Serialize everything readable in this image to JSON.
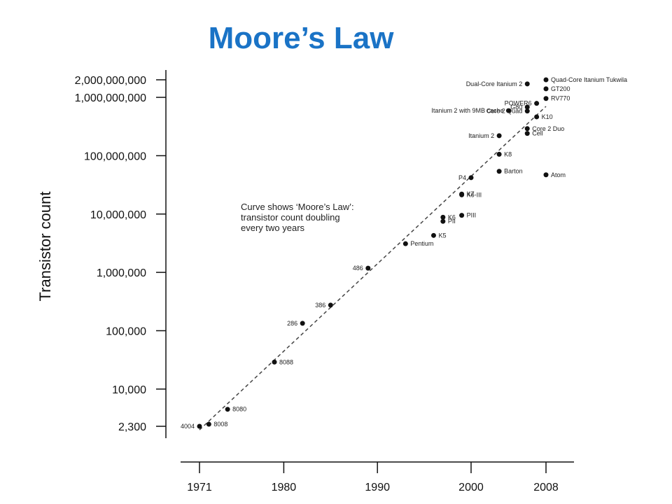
{
  "page": {
    "title": "Moore’s Law"
  },
  "chart_data": {
    "type": "scatter",
    "title": "",
    "xlabel": "",
    "ylabel": "Transistor count",
    "xscale": "linear",
    "yscale": "log",
    "xlim": [
      1971,
      2008
    ],
    "ylim": [
      2300,
      2000000000
    ],
    "x_ticks": [
      1971,
      1980,
      1990,
      2000,
      2008
    ],
    "y_ticks": [
      {
        "value": 2300,
        "label": "2,300"
      },
      {
        "value": 10000,
        "label": "10,000"
      },
      {
        "value": 100000,
        "label": "100,000"
      },
      {
        "value": 1000000,
        "label": "1,000,000"
      },
      {
        "value": 10000000,
        "label": "10,000,000"
      },
      {
        "value": 100000000,
        "label": "100,000,000"
      },
      {
        "value": 1000000000,
        "label": "1,000,000,000"
      },
      {
        "value": 2000000000,
        "label": "2,000,000,000"
      }
    ],
    "grid": false,
    "trend_line": {
      "style": "dashed",
      "x": [
        1971,
        2008
      ],
      "y": [
        2000,
        700000000
      ]
    },
    "annotation": [
      "Curve shows ‘Moore’s Law’:",
      "transistor count doubling",
      "every two years"
    ],
    "points": [
      {
        "name": "4004",
        "x": 1971,
        "y": 2300,
        "label_side": "left"
      },
      {
        "name": "8008",
        "x": 1972,
        "y": 2500,
        "label_side": "right"
      },
      {
        "name": "8080",
        "x": 1974,
        "y": 4500,
        "label_side": "right"
      },
      {
        "name": "8088",
        "x": 1979,
        "y": 29000,
        "label_side": "right"
      },
      {
        "name": "286",
        "x": 1982,
        "y": 134000,
        "label_side": "left"
      },
      {
        "name": "386",
        "x": 1985,
        "y": 275000,
        "label_side": "left"
      },
      {
        "name": "486",
        "x": 1989,
        "y": 1180000,
        "label_side": "left"
      },
      {
        "name": "Pentium",
        "x": 1993,
        "y": 3100000,
        "label_side": "right"
      },
      {
        "name": "K5",
        "x": 1996,
        "y": 4300000,
        "label_side": "right"
      },
      {
        "name": "K6",
        "x": 1997,
        "y": 8800000,
        "label_side": "right"
      },
      {
        "name": "PII",
        "x": 1997,
        "y": 7500000,
        "label_side": "right"
      },
      {
        "name": "PIII",
        "x": 1999,
        "y": 9500000,
        "label_side": "right"
      },
      {
        "name": "K7",
        "x": 1999,
        "y": 22000000,
        "label_side": "right"
      },
      {
        "name": "K6-III",
        "x": 1999,
        "y": 21300000,
        "label_side": "right"
      },
      {
        "name": "P4",
        "x": 2000,
        "y": 42000000,
        "label_side": "left"
      },
      {
        "name": "Barton",
        "x": 2003,
        "y": 54000000,
        "label_side": "right"
      },
      {
        "name": "K8",
        "x": 2003,
        "y": 105900000,
        "label_side": "right"
      },
      {
        "name": "Itanium 2",
        "x": 2003,
        "y": 220000000,
        "label_side": "left"
      },
      {
        "name": "Itanium 2 with 9MB cache",
        "x": 2004,
        "y": 592000000,
        "label_side": "left"
      },
      {
        "name": "Core 2 Quad",
        "x": 2006,
        "y": 582000000,
        "label_side": "left"
      },
      {
        "name": "Core 2 Duo",
        "x": 2006,
        "y": 291000000,
        "label_side": "right"
      },
      {
        "name": "Cell",
        "x": 2006,
        "y": 241000000,
        "label_side": "right"
      },
      {
        "name": "G80",
        "x": 2006,
        "y": 681000000,
        "label_side": "left"
      },
      {
        "name": "POWER6",
        "x": 2007,
        "y": 789000000,
        "label_side": "left"
      },
      {
        "name": "Dual-Core Itanium 2",
        "x": 2006,
        "y": 1700000000,
        "label_side": "left"
      },
      {
        "name": "K10",
        "x": 2007,
        "y": 463000000,
        "label_side": "right"
      },
      {
        "name": "Quad-Core Itanium Tukwila",
        "x": 2008,
        "y": 2000000000,
        "label_side": "right"
      },
      {
        "name": "GT200",
        "x": 2008,
        "y": 1400000000,
        "label_side": "right"
      },
      {
        "name": "RV770",
        "x": 2008,
        "y": 956000000,
        "label_side": "right"
      },
      {
        "name": "Atom",
        "x": 2008,
        "y": 47000000,
        "label_side": "right"
      }
    ]
  }
}
